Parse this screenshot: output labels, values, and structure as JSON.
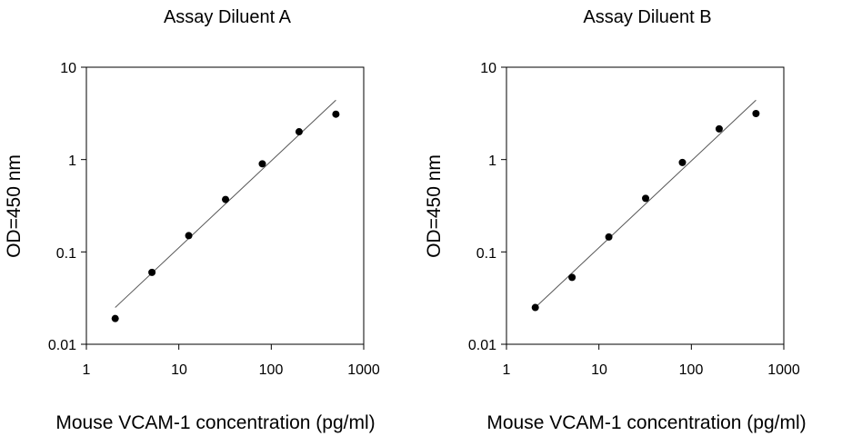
{
  "chart_data": [
    {
      "type": "scatter",
      "title": "Assay Diluent A",
      "xlabel": "Mouse VCAM-1 concentration (pg/ml)",
      "ylabel": "OD=450 nm",
      "xscale": "log",
      "yscale": "log",
      "xlim": [
        1,
        1000
      ],
      "ylim": [
        0.01,
        10
      ],
      "xticks": [
        "1",
        "10",
        "100",
        "1000"
      ],
      "yticks": [
        "0.01",
        "0.1",
        "1",
        "10"
      ],
      "grid": false,
      "points": [
        {
          "x": 2.05,
          "y": 0.019
        },
        {
          "x": 5.12,
          "y": 0.06
        },
        {
          "x": 12.8,
          "y": 0.15
        },
        {
          "x": 32,
          "y": 0.37
        },
        {
          "x": 80,
          "y": 0.9
        },
        {
          "x": 200,
          "y": 2.0
        },
        {
          "x": 500,
          "y": 3.1
        }
      ],
      "fit_line": {
        "x": [
          2.05,
          500
        ],
        "y": [
          0.025,
          4.4
        ]
      }
    },
    {
      "type": "scatter",
      "title": "Assay Diluent B",
      "xlabel": "Mouse VCAM-1 concentration (pg/ml)",
      "ylabel": "OD=450 nm",
      "xscale": "log",
      "yscale": "log",
      "xlim": [
        1,
        1000
      ],
      "ylim": [
        0.01,
        10
      ],
      "xticks": [
        "1",
        "10",
        "100",
        "1000"
      ],
      "yticks": [
        "0.01",
        "0.1",
        "1",
        "10"
      ],
      "grid": false,
      "points": [
        {
          "x": 2.05,
          "y": 0.025
        },
        {
          "x": 5.12,
          "y": 0.053
        },
        {
          "x": 12.8,
          "y": 0.145
        },
        {
          "x": 32,
          "y": 0.38
        },
        {
          "x": 80,
          "y": 0.93
        },
        {
          "x": 200,
          "y": 2.15
        },
        {
          "x": 500,
          "y": 3.15
        }
      ],
      "fit_line": {
        "x": [
          2.05,
          500
        ],
        "y": [
          0.025,
          4.4
        ]
      }
    }
  ]
}
